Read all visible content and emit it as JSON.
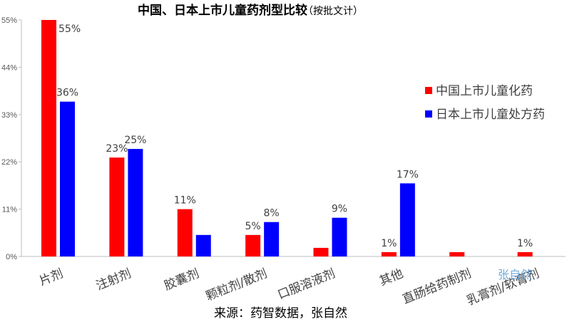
{
  "chart_data": {
    "type": "bar",
    "title": "中国、日本上市儿童药剂型比较",
    "subtitle": "（按批文计）",
    "categories": [
      "片剂",
      "注射剂",
      "胶囊剂",
      "颗粒剂/散剂",
      "口服溶液剂",
      "其他",
      "直肠给药制剂",
      "乳膏剂/软膏剂"
    ],
    "series": [
      {
        "name": "中国上市儿童化药",
        "color": "#ff0000",
        "values": [
          55,
          23,
          11,
          5,
          2,
          1,
          1,
          1
        ],
        "labels": [
          "55%",
          "23%",
          "11%",
          "5%",
          "",
          "1%",
          "",
          "1%"
        ]
      },
      {
        "name": "日本上市儿童处方药",
        "color": "#0000ff",
        "values": [
          36,
          25,
          5,
          8,
          9,
          17,
          0,
          0
        ],
        "labels": [
          "36%",
          "25%",
          "",
          "8%",
          "9%",
          "17%",
          "",
          ""
        ]
      }
    ],
    "ylim": [
      0,
      55
    ],
    "yticks": [
      0,
      11,
      22,
      33,
      44,
      55
    ],
    "ytick_labels": [
      "0%",
      "11%",
      "22%",
      "33%",
      "44%",
      "55%"
    ],
    "xlabel": "",
    "ylabel": "",
    "grid": false,
    "legend_position": "right"
  },
  "source_text": "来源：药智数据，张自然",
  "watermark_text": "张自然"
}
